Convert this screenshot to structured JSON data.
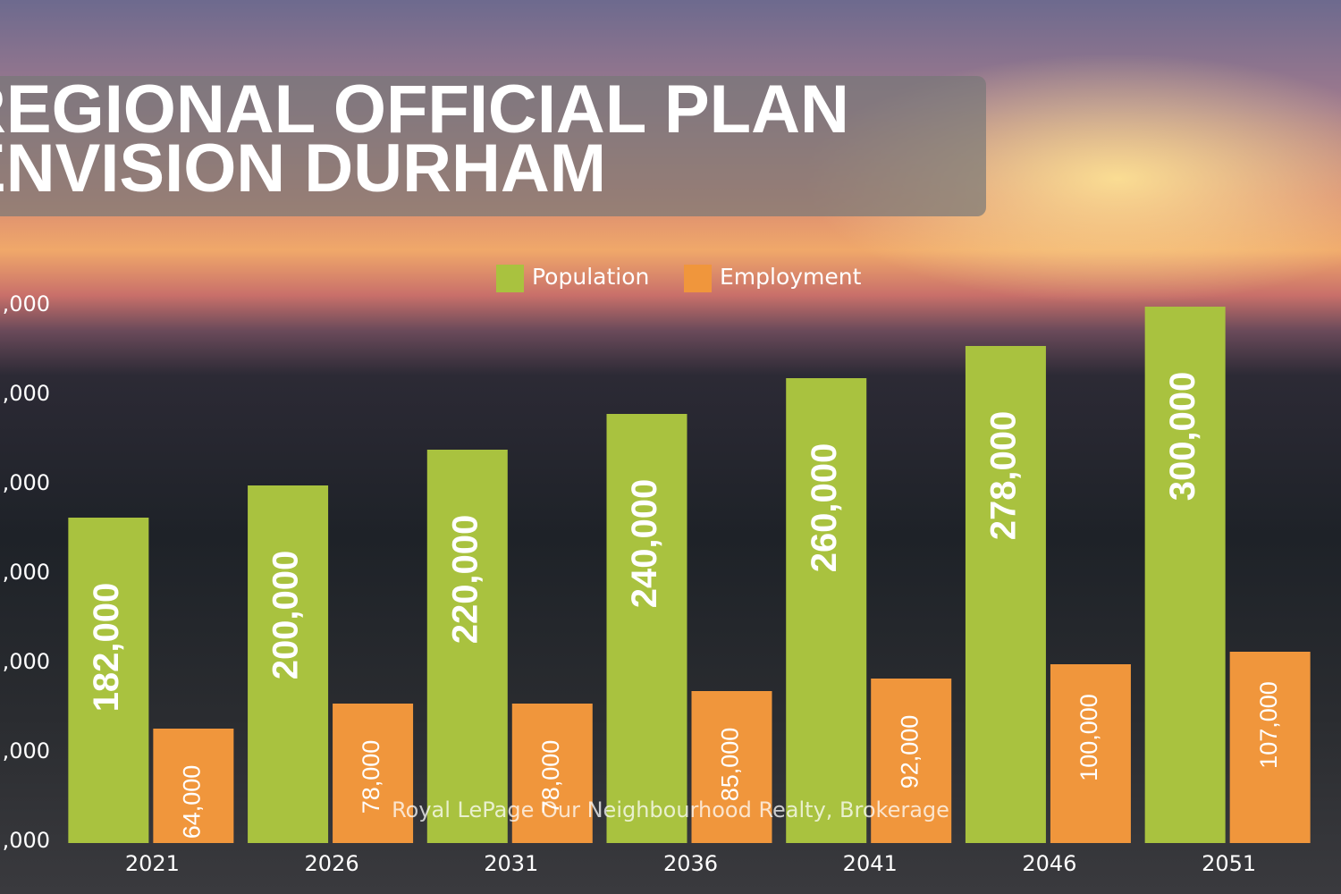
{
  "chart_data": {
    "type": "bar",
    "title": [
      "REGIONAL OFFICIAL PLAN",
      "ENVISION DURHAM"
    ],
    "watermark": "Royal LePage Our Neighbourhood Realty, Brokerage",
    "categories": [
      "2021",
      "2026",
      "2031",
      "2036",
      "2041",
      "2046",
      "2051"
    ],
    "series": [
      {
        "name": "Population",
        "color": "#a9c23f",
        "values": [
          182000,
          200000,
          220000,
          240000,
          260000,
          278000,
          300000
        ],
        "value_labels": [
          "182,000",
          "200,000",
          "220,000",
          "240,000",
          "260,000",
          "278,000",
          "300,000"
        ]
      },
      {
        "name": "Employment",
        "color": "#f0963c",
        "values": [
          64000,
          78000,
          78000,
          85000,
          92000,
          100000,
          107000
        ],
        "value_labels": [
          "64,000",
          "78,000",
          "78,000",
          "85,000",
          "92,000",
          "100,000",
          "107,000"
        ]
      }
    ],
    "ylim": [
      0,
      300000
    ],
    "yticks": [
      {
        "value": 0,
        "label": ",000"
      },
      {
        "value": 50000,
        "label": ",000"
      },
      {
        "value": 100000,
        "label": ",000"
      },
      {
        "value": 150000,
        "label": ",000"
      },
      {
        "value": 200000,
        "label": ",000"
      },
      {
        "value": 250000,
        "label": ",000"
      },
      {
        "value": 300000,
        "label": ",000"
      }
    ],
    "legend": "top"
  }
}
